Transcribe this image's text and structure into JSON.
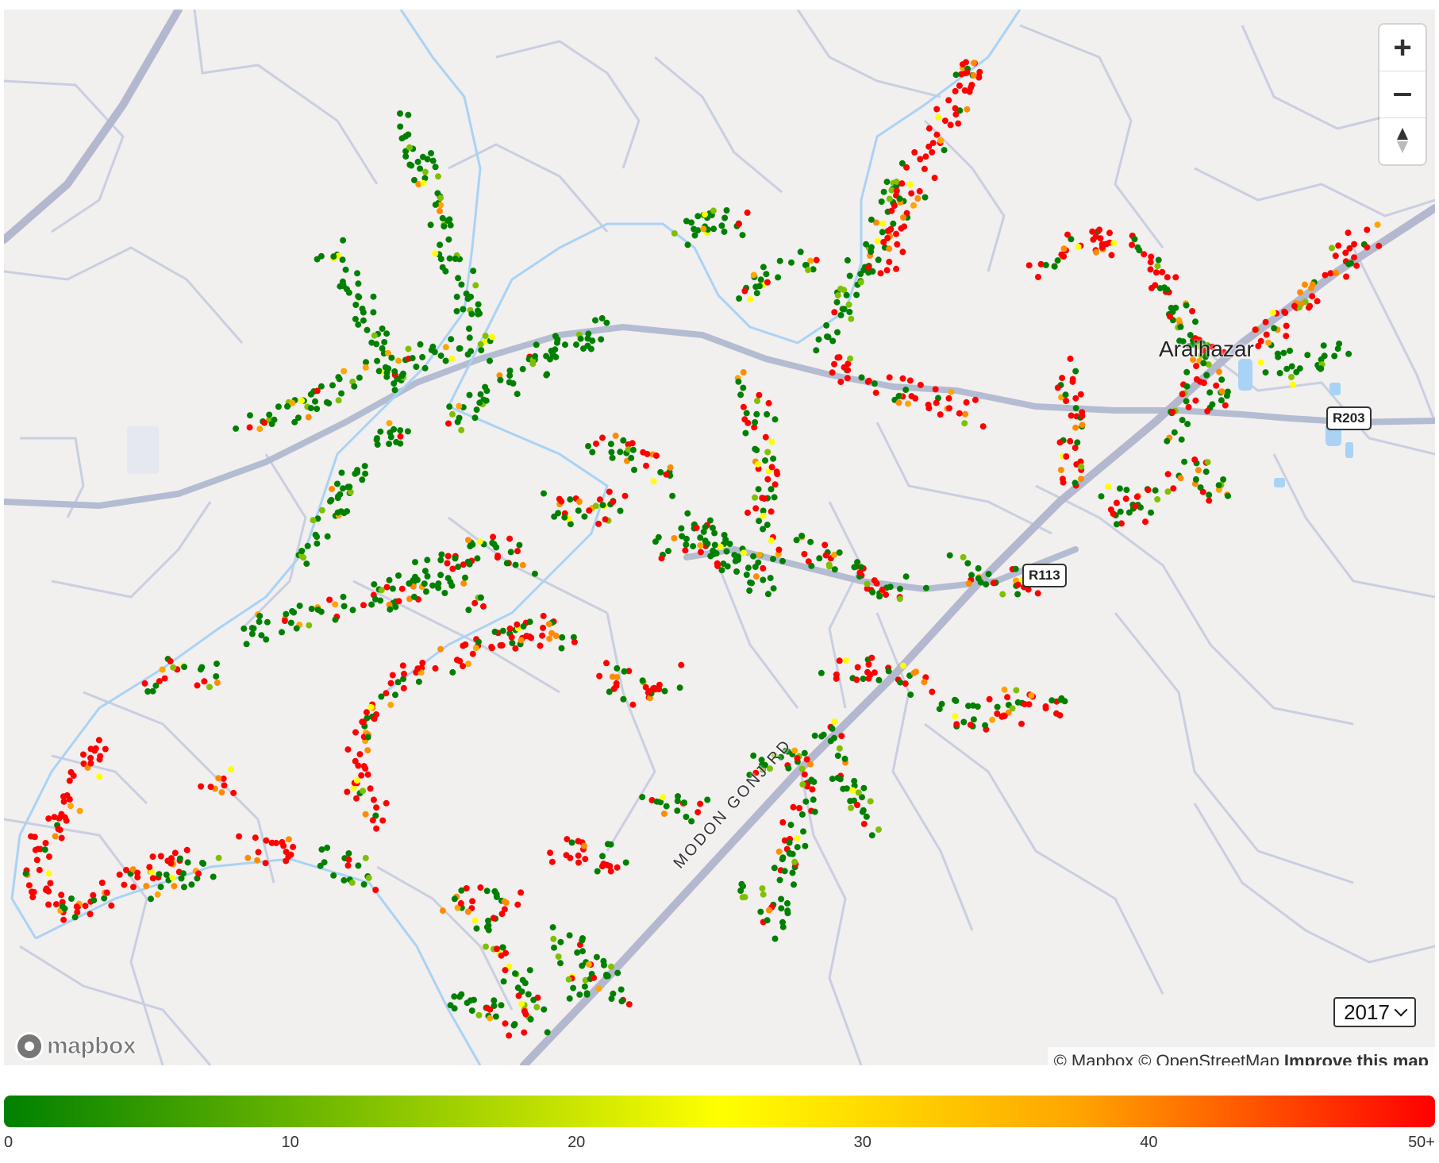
{
  "map": {
    "place_label": "Araihazar",
    "road_shields": [
      "R203",
      "R113"
    ],
    "road_label": "MODON GONJ RD",
    "attribution": {
      "mapbox": "© Mapbox",
      "osm": "© OpenStreetMap",
      "improve": "Improve this map"
    },
    "logo_text": "mapbox",
    "controls": {
      "zoom_in": "+",
      "zoom_out": "−",
      "compass": "compass"
    },
    "year_select": {
      "value": "2017"
    },
    "colors": {
      "background": "#f2efef",
      "road": "#c9cfe0",
      "highway": "#b4b8ce",
      "water": "#a9d3f5",
      "low": "#008000",
      "mid": "#ffff00",
      "high": "#ff0000"
    }
  },
  "legend": {
    "ticks": [
      "0",
      "10",
      "20",
      "30",
      "40",
      "50+"
    ],
    "gradient": [
      "#008000",
      "#ffff00",
      "#ff0000"
    ]
  }
}
